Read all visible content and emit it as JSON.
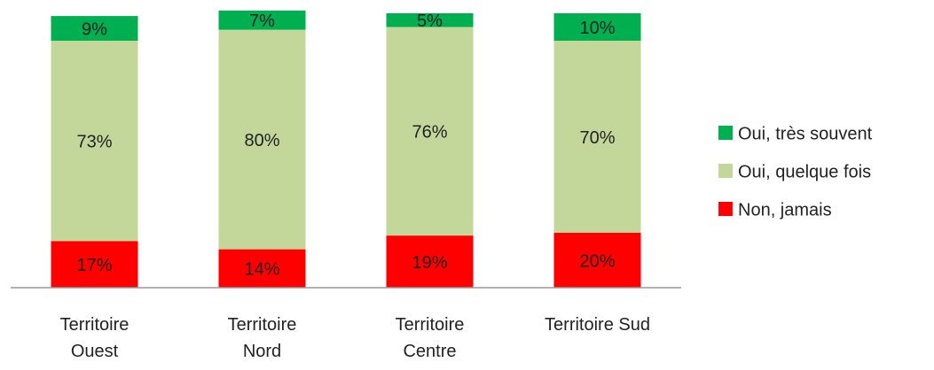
{
  "chart_data": {
    "type": "stacked_bar",
    "categories": [
      "Territoire\nOuest",
      "Territoire\nNord",
      "Territoire\nCentre",
      "Territoire Sud"
    ],
    "series": [
      {
        "name": "Non, jamais",
        "color": "#ff0000",
        "values": [
          17,
          14,
          19,
          20
        ],
        "value_labels": [
          "17%",
          "14%",
          "19%",
          "20%"
        ]
      },
      {
        "name": "Oui, quelque fois",
        "color": "#c4d79b",
        "values": [
          73,
          80,
          76,
          70
        ],
        "value_labels": [
          "73%",
          "80%",
          "76%",
          "70%"
        ]
      },
      {
        "name": "Oui, très souvent",
        "color": "#00b050",
        "values": [
          9,
          7,
          5,
          10
        ],
        "value_labels": [
          "9%",
          "7%",
          "5%",
          "10%"
        ]
      }
    ],
    "ylim": [
      0,
      100
    ],
    "legend": "right"
  }
}
